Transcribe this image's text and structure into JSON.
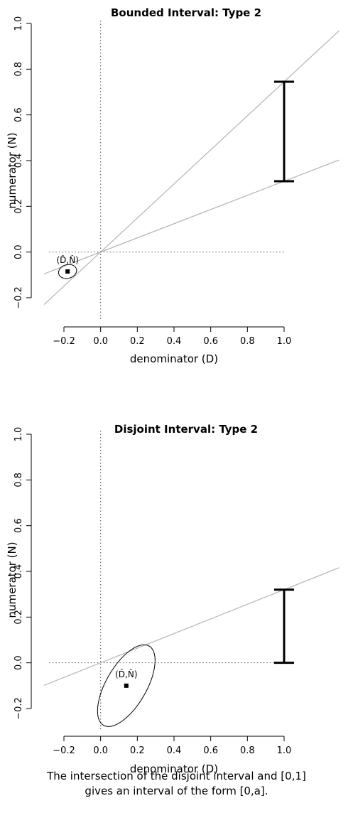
{
  "chart_data": [
    {
      "type": "line",
      "title": "Bounded Interval: Type 2",
      "xlabel": "denominator (D)",
      "ylabel": "numerator (N)",
      "xlim": [
        -0.2,
        1.0
      ],
      "ylim": [
        -0.2,
        1.0
      ],
      "x_ticks": [
        "−0.2",
        "0.0",
        "0.2",
        "0.4",
        "0.6",
        "0.8",
        "1.0"
      ],
      "y_ticks": [
        "−0.2",
        "0.0",
        "0.2",
        "0.4",
        "0.6",
        "0.8",
        "1.0"
      ],
      "estimate_label": "(D̂,N̂)",
      "estimate_point": {
        "x": -0.18,
        "y": -0.085
      },
      "ellipse": {
        "cx": -0.18,
        "cy": -0.085,
        "rx": 0.05,
        "ry": 0.03,
        "tilt_deg": -15
      },
      "lines": [
        {
          "slope": 0.745
        },
        {
          "slope": 0.31
        }
      ],
      "interval": {
        "x": 1.0,
        "lower": 0.31,
        "upper": 0.745
      },
      "reference_lines": {
        "x": 0,
        "y": 0
      },
      "colors": {
        "lines": "#b3b3b3",
        "reference": "#555555",
        "interval": "#000000"
      }
    },
    {
      "type": "line",
      "title": "Disjoint Interval: Type 2",
      "xlabel": "denominator (D)",
      "ylabel": "numerator (N)",
      "xlim": [
        -0.2,
        1.0
      ],
      "ylim": [
        -0.2,
        1.0
      ],
      "x_ticks": [
        "−0.2",
        "0.0",
        "0.2",
        "0.4",
        "0.6",
        "0.8",
        "1.0"
      ],
      "y_ticks": [
        "−0.2",
        "0.0",
        "0.2",
        "0.4",
        "0.6",
        "0.8",
        "1.0"
      ],
      "estimate_label": "(D̂,N̂)",
      "estimate_point": {
        "x": 0.14,
        "y": -0.1
      },
      "ellipse": {
        "cx": 0.14,
        "cy": -0.1,
        "rx": 0.11,
        "ry": 0.2,
        "tilt_deg": 30
      },
      "lines": [
        {
          "slope": 0.32
        }
      ],
      "interval": {
        "x": 1.0,
        "lower": 0.0,
        "upper": 0.32
      },
      "reference_lines": {
        "x": 0,
        "y": 0
      },
      "colors": {
        "lines": "#b3b3b3",
        "reference": "#555555",
        "interval": "#000000"
      }
    }
  ],
  "caption": {
    "line1": "The intersection of the disjoint interval and [0,1]",
    "line2": "gives an interval of the form [0,a]."
  }
}
